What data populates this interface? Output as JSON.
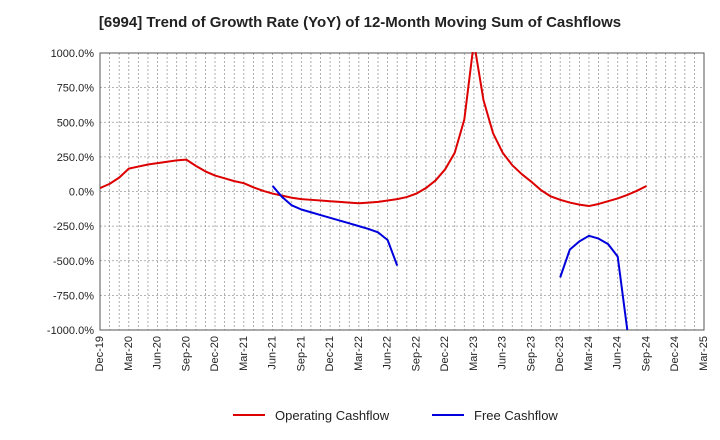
{
  "chart_data": {
    "type": "line",
    "title": "[6994]  Trend of Growth Rate (YoY) of 12-Month Moving Sum of Cashflows",
    "x_categories": [
      "Dec-19",
      "Mar-20",
      "Jun-20",
      "Sep-20",
      "Dec-20",
      "Mar-21",
      "Jun-21",
      "Sep-21",
      "Dec-21",
      "Mar-22",
      "Jun-22",
      "Sep-22",
      "Dec-22",
      "Mar-23",
      "Jun-23",
      "Sep-23",
      "Dec-23",
      "Mar-24",
      "Jun-24",
      "Sep-24",
      "Dec-24",
      "Mar-25"
    ],
    "y_ticks": [
      1000,
      750,
      500,
      250,
      0,
      -250,
      -500,
      -750,
      -1000
    ],
    "y_tick_labels": [
      "1000.0%",
      "750.0%",
      "500.0%",
      "250.0%",
      "0.0%",
      "-250.0%",
      "-500.0%",
      "-750.0%",
      "-1000.0%"
    ],
    "ylim": [
      -1000,
      1000
    ],
    "grid": "dashed",
    "legend_position": "bottom",
    "series": [
      {
        "name": "Operating Cashflow",
        "color": "#dd0000",
        "points": [
          [
            0,
            25
          ],
          [
            1,
            55
          ],
          [
            2,
            100
          ],
          [
            3,
            165
          ],
          [
            4,
            180
          ],
          [
            5,
            195
          ],
          [
            6,
            205
          ],
          [
            7,
            215
          ],
          [
            8,
            225
          ],
          [
            9,
            230
          ],
          [
            10,
            185
          ],
          [
            11,
            145
          ],
          [
            12,
            115
          ],
          [
            13,
            95
          ],
          [
            14,
            75
          ],
          [
            15,
            60
          ],
          [
            16,
            30
          ],
          [
            17,
            5
          ],
          [
            18,
            -15
          ],
          [
            19,
            -30
          ],
          [
            20,
            -45
          ],
          [
            21,
            -55
          ],
          [
            22,
            -60
          ],
          [
            23,
            -65
          ],
          [
            24,
            -70
          ],
          [
            25,
            -75
          ],
          [
            26,
            -80
          ],
          [
            27,
            -85
          ],
          [
            28,
            -80
          ],
          [
            29,
            -75
          ],
          [
            30,
            -65
          ],
          [
            31,
            -55
          ],
          [
            32,
            -40
          ],
          [
            33,
            -15
          ],
          [
            34,
            25
          ],
          [
            35,
            80
          ],
          [
            36,
            160
          ],
          [
            37,
            280
          ],
          [
            38,
            520
          ],
          [
            39,
            1080
          ],
          [
            40,
            660
          ],
          [
            41,
            420
          ],
          [
            42,
            280
          ],
          [
            43,
            190
          ],
          [
            44,
            125
          ],
          [
            45,
            70
          ],
          [
            46,
            10
          ],
          [
            47,
            -35
          ],
          [
            48,
            -60
          ],
          [
            49,
            -80
          ],
          [
            50,
            -95
          ],
          [
            51,
            -105
          ],
          [
            52,
            -90
          ],
          [
            53,
            -70
          ],
          [
            54,
            -50
          ],
          [
            55,
            -25
          ],
          [
            56,
            5
          ],
          [
            57,
            40
          ]
        ]
      },
      {
        "name": "Free Cashflow",
        "color": "#0000dd",
        "segments": [
          [
            [
              18,
              40
            ],
            [
              19,
              -40
            ],
            [
              20,
              -100
            ],
            [
              21,
              -130
            ],
            [
              22,
              -150
            ],
            [
              23,
              -170
            ],
            [
              24,
              -190
            ],
            [
              25,
              -210
            ],
            [
              26,
              -230
            ],
            [
              27,
              -250
            ],
            [
              28,
              -270
            ],
            [
              29,
              -295
            ],
            [
              30,
              -350
            ],
            [
              31,
              -535
            ]
          ],
          [
            [
              48,
              -620
            ],
            [
              49,
              -420
            ],
            [
              50,
              -360
            ],
            [
              51,
              -320
            ],
            [
              52,
              -340
            ],
            [
              53,
              -380
            ],
            [
              54,
              -470
            ],
            [
              55,
              -1000
            ]
          ]
        ]
      }
    ]
  }
}
